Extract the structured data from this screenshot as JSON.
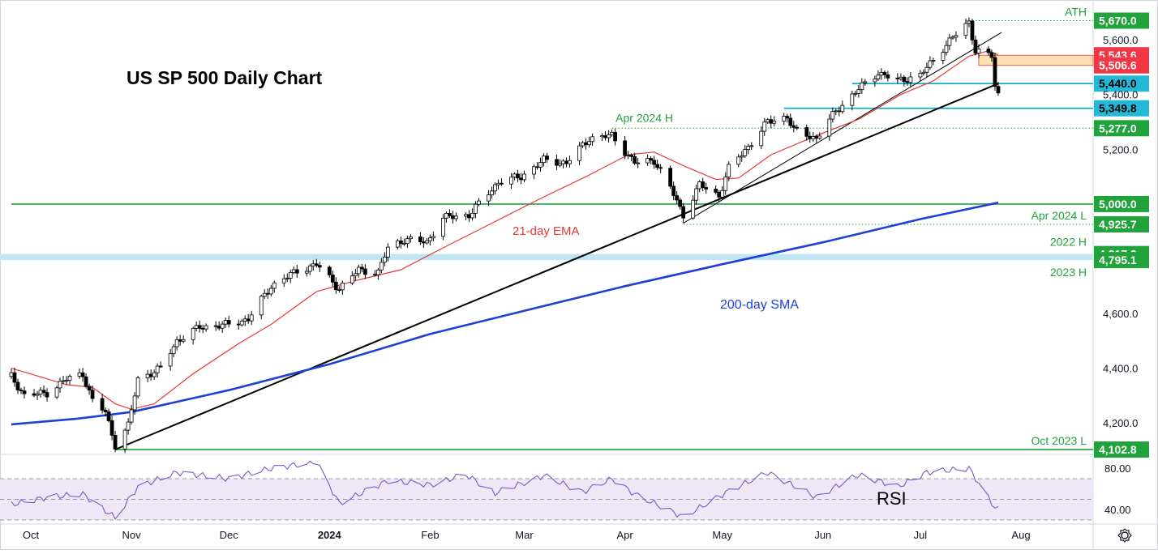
{
  "title": "US SP 500 Daily Chart",
  "chart_data": {
    "type": "candlestick",
    "title": "US SP 500 Daily Chart",
    "ylim": [
      4100,
      5710
    ],
    "y_ticks": [
      4200,
      4400,
      4600,
      5200,
      5400,
      5600
    ],
    "y_tick_labels": [
      "4,200.0",
      "4,400.0",
      "4,600.0",
      "5,200.0",
      "5,400.0",
      "5,600.0"
    ],
    "x_labels": [
      {
        "label": "Oct",
        "date": "2023-10-01",
        "bold": false
      },
      {
        "label": "Nov",
        "date": "2023-11-01",
        "bold": false
      },
      {
        "label": "Dec",
        "date": "2023-12-01",
        "bold": false
      },
      {
        "label": "2024",
        "date": "2024-01-01",
        "bold": true
      },
      {
        "label": "Feb",
        "date": "2024-02-01",
        "bold": false
      },
      {
        "label": "Mar",
        "date": "2024-03-01",
        "bold": false
      },
      {
        "label": "Apr",
        "date": "2024-04-01",
        "bold": false
      },
      {
        "label": "May",
        "date": "2024-05-01",
        "bold": false
      },
      {
        "label": "Jun",
        "date": "2024-06-01",
        "bold": false
      },
      {
        "label": "Jul",
        "date": "2024-07-01",
        "bold": false
      },
      {
        "label": "Aug",
        "date": "2024-08-01",
        "bold": false
      }
    ],
    "close_path": [
      [
        "2023-09-25",
        4370
      ],
      [
        "2023-09-29",
        4300
      ],
      [
        "2023-10-06",
        4310
      ],
      [
        "2023-10-12",
        4360
      ],
      [
        "2023-10-17",
        4380
      ],
      [
        "2023-10-20",
        4280
      ],
      [
        "2023-10-24",
        4240
      ],
      [
        "2023-10-27",
        4120
      ],
      [
        "2023-10-31",
        4190
      ],
      [
        "2023-11-03",
        4360
      ],
      [
        "2023-11-10",
        4400
      ],
      [
        "2023-11-15",
        4500
      ],
      [
        "2023-11-22",
        4550
      ],
      [
        "2023-12-01",
        4560
      ],
      [
        "2023-12-07",
        4580
      ],
      [
        "2023-12-14",
        4700
      ],
      [
        "2023-12-22",
        4755
      ],
      [
        "2023-12-28",
        4780
      ],
      [
        "2024-01-04",
        4690
      ],
      [
        "2024-01-10",
        4760
      ],
      [
        "2024-01-16",
        4750
      ],
      [
        "2024-01-19",
        4840
      ],
      [
        "2024-01-24",
        4870
      ],
      [
        "2024-01-31",
        4860
      ],
      [
        "2024-02-05",
        4950
      ],
      [
        "2024-02-13",
        4960
      ],
      [
        "2024-02-16",
        5000
      ],
      [
        "2024-02-22",
        5080
      ],
      [
        "2024-02-29",
        5100
      ],
      [
        "2024-03-07",
        5160
      ],
      [
        "2024-03-14",
        5150
      ],
      [
        "2024-03-21",
        5240
      ],
      [
        "2024-03-28",
        5250
      ],
      [
        "2024-04-04",
        5150
      ],
      [
        "2024-04-10",
        5160
      ],
      [
        "2024-04-15",
        5060
      ],
      [
        "2024-04-19",
        4960
      ],
      [
        "2024-04-24",
        5070
      ],
      [
        "2024-04-30",
        5030
      ],
      [
        "2024-05-03",
        5130
      ],
      [
        "2024-05-09",
        5210
      ],
      [
        "2024-05-15",
        5300
      ],
      [
        "2024-05-21",
        5320
      ],
      [
        "2024-05-23",
        5270
      ],
      [
        "2024-05-30",
        5240
      ],
      [
        "2024-06-05",
        5340
      ],
      [
        "2024-06-12",
        5420
      ],
      [
        "2024-06-18",
        5480
      ],
      [
        "2024-06-24",
        5450
      ],
      [
        "2024-07-01",
        5470
      ],
      [
        "2024-07-08",
        5570
      ],
      [
        "2024-07-12",
        5620
      ],
      [
        "2024-07-16",
        5665
      ],
      [
        "2024-07-18",
        5560
      ],
      [
        "2024-07-23",
        5540
      ],
      [
        "2024-07-24",
        5430
      ],
      [
        "2024-07-25",
        5400
      ]
    ],
    "ema_21": [
      [
        "2023-09-25",
        4400
      ],
      [
        "2023-10-12",
        4340
      ],
      [
        "2023-10-20",
        4330
      ],
      [
        "2023-10-27",
        4270
      ],
      [
        "2023-11-01",
        4250
      ],
      [
        "2023-11-08",
        4270
      ],
      [
        "2023-11-20",
        4380
      ],
      [
        "2023-12-04",
        4490
      ],
      [
        "2023-12-14",
        4560
      ],
      [
        "2023-12-28",
        4680
      ],
      [
        "2024-01-09",
        4720
      ],
      [
        "2024-01-23",
        4760
      ],
      [
        "2024-02-05",
        4840
      ],
      [
        "2024-02-20",
        4930
      ],
      [
        "2024-03-06",
        5020
      ],
      [
        "2024-03-20",
        5100
      ],
      [
        "2024-04-02",
        5180
      ],
      [
        "2024-04-10",
        5190
      ],
      [
        "2024-04-19",
        5140
      ],
      [
        "2024-04-29",
        5090
      ],
      [
        "2024-05-06",
        5095
      ],
      [
        "2024-05-16",
        5180
      ],
      [
        "2024-05-30",
        5250
      ],
      [
        "2024-06-12",
        5310
      ],
      [
        "2024-06-25",
        5400
      ],
      [
        "2024-07-05",
        5450
      ],
      [
        "2024-07-16",
        5540
      ],
      [
        "2024-07-22",
        5560
      ],
      [
        "2024-07-25",
        5545
      ]
    ],
    "sma_200": [
      [
        "2023-09-25",
        4195
      ],
      [
        "2023-10-15",
        4215
      ],
      [
        "2023-11-01",
        4240
      ],
      [
        "2023-12-01",
        4320
      ],
      [
        "2024-01-01",
        4415
      ],
      [
        "2024-02-01",
        4525
      ],
      [
        "2024-03-01",
        4610
      ],
      [
        "2024-04-01",
        4700
      ],
      [
        "2024-05-01",
        4780
      ],
      [
        "2024-06-01",
        4860
      ],
      [
        "2024-07-01",
        4945
      ],
      [
        "2024-07-25",
        5005
      ]
    ],
    "rsi": {
      "label": "RSI",
      "ylim": [
        30,
        88
      ],
      "levels": [
        70,
        50,
        30
      ],
      "tick_values": [
        80,
        40
      ],
      "tick_labels": [
        "80.00",
        "40.00"
      ],
      "values": [
        [
          "2023-09-25",
          45
        ],
        [
          "2023-10-06",
          52
        ],
        [
          "2023-10-17",
          55
        ],
        [
          "2023-10-27",
          32
        ],
        [
          "2023-11-03",
          62
        ],
        [
          "2023-11-15",
          76
        ],
        [
          "2023-12-01",
          70
        ],
        [
          "2023-12-14",
          80
        ],
        [
          "2023-12-28",
          86
        ],
        [
          "2024-01-04",
          46
        ],
        [
          "2024-01-19",
          68
        ],
        [
          "2024-02-01",
          64
        ],
        [
          "2024-02-12",
          74
        ],
        [
          "2024-02-21",
          56
        ],
        [
          "2024-03-07",
          73
        ],
        [
          "2024-03-19",
          57
        ],
        [
          "2024-03-28",
          70
        ],
        [
          "2024-04-04",
          55
        ],
        [
          "2024-04-19",
          33
        ],
        [
          "2024-05-03",
          58
        ],
        [
          "2024-05-15",
          76
        ],
        [
          "2024-05-30",
          52
        ],
        [
          "2024-06-12",
          74
        ],
        [
          "2024-06-24",
          62
        ],
        [
          "2024-07-03",
          76
        ],
        [
          "2024-07-16",
          80
        ],
        [
          "2024-07-23",
          46
        ],
        [
          "2024-07-25",
          40
        ]
      ]
    },
    "lines": [
      {
        "name": "ath",
        "label": "ATH",
        "value": 5670,
        "value_label": "5,670.0",
        "style": "dotted",
        "color": "#21a33b",
        "from": "2024-07-15"
      },
      {
        "name": "apr-2024-high",
        "label": "Apr 2024 H",
        "value": 5277,
        "value_label": "5,277.0",
        "style": "dotted",
        "color": "#21a33b",
        "from": "2024-03-28"
      },
      {
        "name": "level-5000",
        "label": "",
        "value": 5000,
        "value_label": "5,000.0",
        "style": "solid",
        "color": "#21a33b",
        "from": "2023-09-25"
      },
      {
        "name": "apr-2024-low",
        "label": "Apr 2024 L",
        "value": 4925.7,
        "value_label": "4,925.7",
        "style": "dotted",
        "color": "#21a33b",
        "from": "2024-04-19"
      },
      {
        "name": "oct-2023-low",
        "label": "Oct 2023 L",
        "value": 4102.8,
        "value_label": "4,102.8",
        "style": "solid",
        "color": "#21a33b",
        "from": "2023-10-27"
      },
      {
        "name": "support-5440",
        "label": "",
        "value": 5440,
        "value_label": "5,440.0",
        "style": "solid",
        "color": "#00acc1",
        "from": "2024-06-10"
      },
      {
        "name": "support-5349",
        "label": "",
        "value": 5349.8,
        "value_label": "5,349.8",
        "style": "solid",
        "color": "#00acc1",
        "from": "2024-05-20"
      }
    ],
    "resistance_zone": {
      "low": 5506.6,
      "high": 5543.6,
      "low_label": "5,506.6",
      "high_label": "5,543.6",
      "color": "#ffe0b2"
    },
    "band_2022_2023": {
      "low": 4795.1,
      "high": 4817.2,
      "low_label": "4,795.1",
      "high_label": "4,817.2",
      "label_high": "2022 H",
      "label_low": "2023 H",
      "color": "#bfe6f5"
    },
    "trendlines": [
      {
        "name": "main-trendline",
        "from": [
          "2023-10-27",
          4103
        ],
        "to": [
          "2024-07-25",
          5440
        ],
        "color": "#000000"
      },
      {
        "name": "short-trendline",
        "from": [
          "2024-04-19",
          4930
        ],
        "to": [
          "2024-07-26",
          5627
        ],
        "color": "#000000"
      }
    ],
    "annotations": {
      "ema": "21-day EMA",
      "sma": "200-day SMA"
    },
    "colors": {
      "up": "#ffffff",
      "down": "#000000",
      "ema": "#e53935",
      "sma": "#1e40d8",
      "rsi": "#7e57c2",
      "rsi_band": "#ede7f6",
      "green": "#21a33b",
      "red_label": "#f23645",
      "cyan_label": "#22b8d6"
    }
  }
}
